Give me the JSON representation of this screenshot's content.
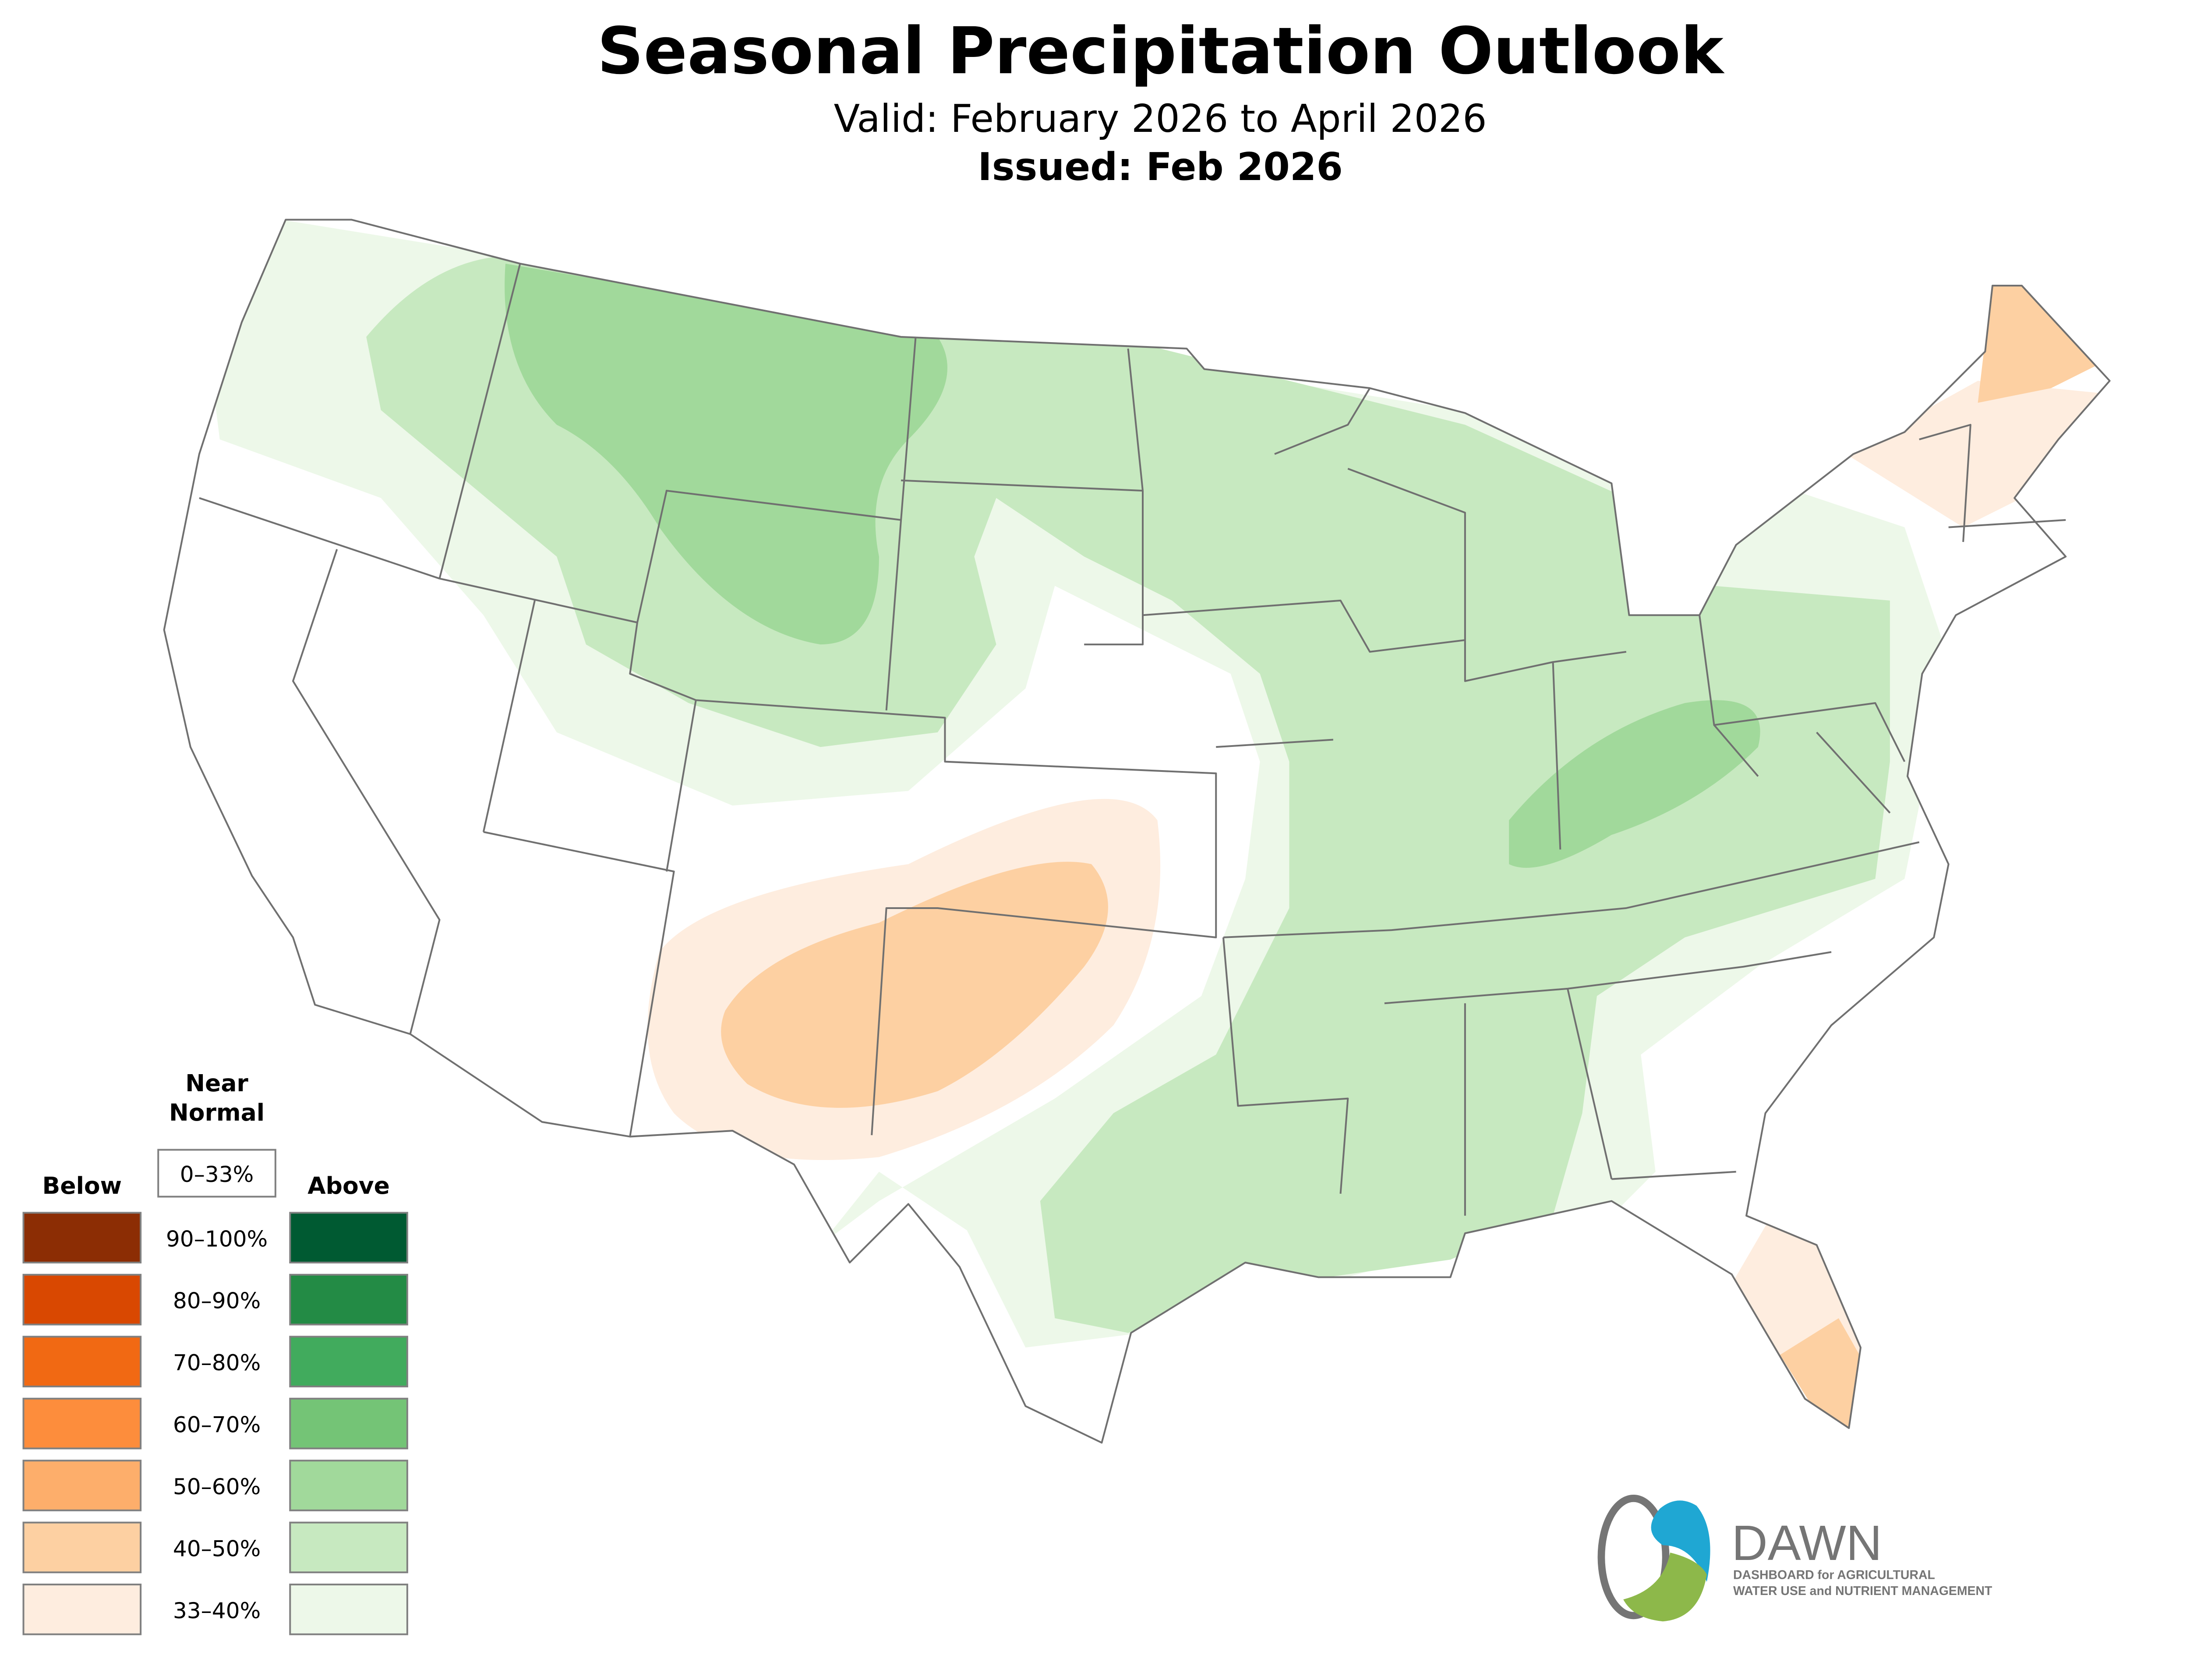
{
  "header": {
    "title": "Seasonal Precipitation Outlook",
    "subtitle": "Valid: February 2026 to April 2026",
    "issued": "Issued: Feb 2026"
  },
  "legend": {
    "near_normal_title_line1": "Near",
    "near_normal_title_line2": "Normal",
    "near_normal_range": "0–33%",
    "below_label": "Below",
    "above_label": "Above",
    "rows": [
      {
        "range": "90–100%",
        "below_color": "#8c2d04",
        "above_color": "#005a32"
      },
      {
        "range": "80–90%",
        "below_color": "#d94801",
        "above_color": "#238b45"
      },
      {
        "range": "70–80%",
        "below_color": "#f16913",
        "above_color": "#41ab5d"
      },
      {
        "range": "60–70%",
        "below_color": "#fd8d3c",
        "above_color": "#74c476"
      },
      {
        "range": "50–60%",
        "below_color": "#fdae6b",
        "above_color": "#a1d99b"
      },
      {
        "range": "40–50%",
        "below_color": "#fdd0a2",
        "above_color": "#c7e9c0"
      },
      {
        "range": "33–40%",
        "below_color": "#feeddf",
        "above_color": "#edf8e9"
      }
    ]
  },
  "logo": {
    "name": "DAWN",
    "tagline_line1": "DASHBOARD for AGRICULTURAL",
    "tagline_line2": "WATER USE and NUTRIENT MANAGEMENT",
    "colors": {
      "blue": "#1fa7d3",
      "green": "#8db84a",
      "gray": "#757575"
    }
  }
}
